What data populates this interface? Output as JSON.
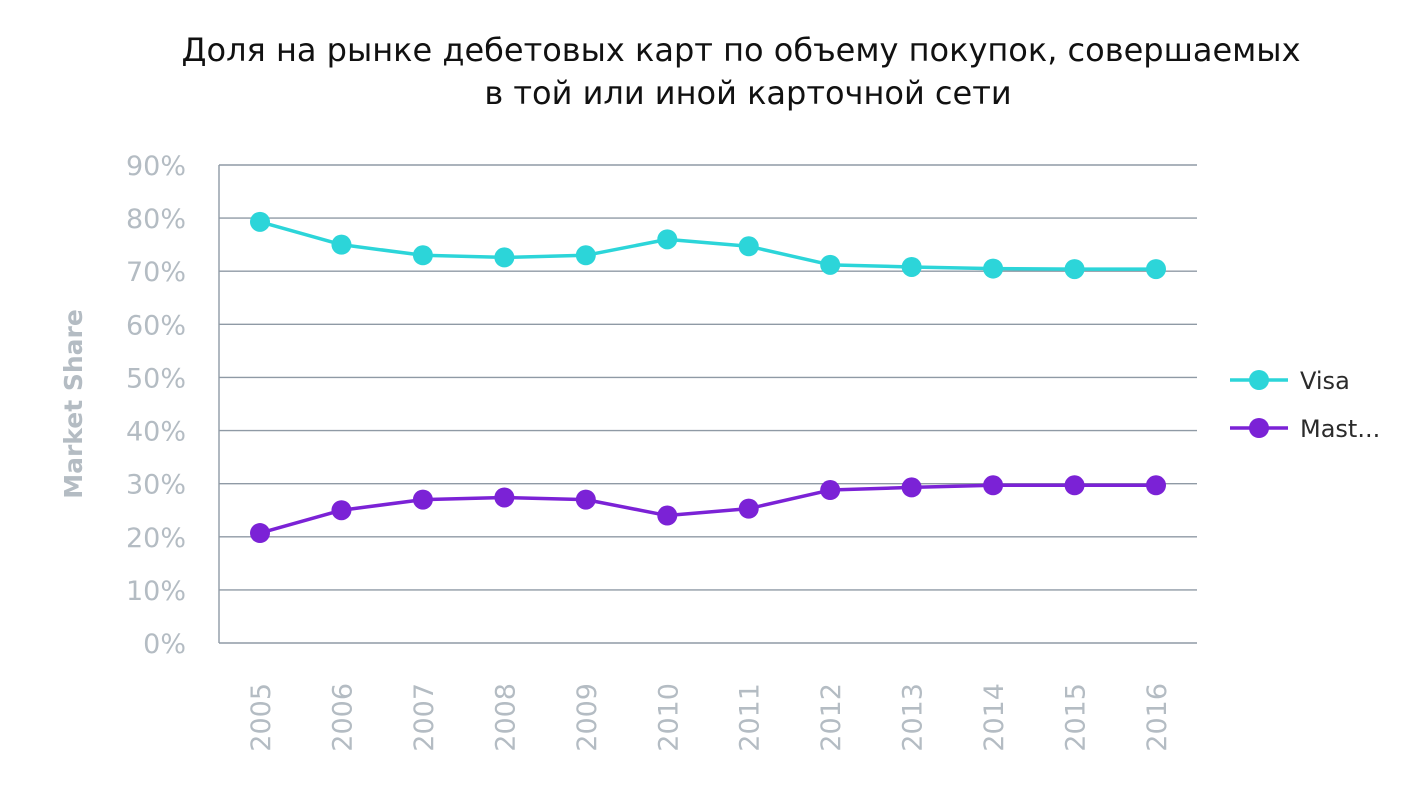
{
  "chart_data": {
    "type": "line",
    "title_lines": [
      "Доля на рынке дебетовых карт по объему покупок, совершаемых",
      "в той или иной карточной сети"
    ],
    "ylabel": "Market Share",
    "xlabel": "",
    "ylim": [
      0,
      90
    ],
    "y_ticks": [
      0,
      10,
      20,
      30,
      40,
      50,
      60,
      70,
      80,
      90
    ],
    "y_tick_labels": [
      "0%",
      "10%",
      "20%",
      "30%",
      "40%",
      "50%",
      "60%",
      "70%",
      "80%",
      "90%"
    ],
    "grid": true,
    "legend_position": "right",
    "categories": [
      "2005",
      "2006",
      "2007",
      "2008",
      "2009",
      "2010",
      "2011",
      "2012",
      "2013",
      "2014",
      "2015",
      "2016"
    ],
    "series": [
      {
        "name": "Visa",
        "color": "#2cd5d9",
        "values": [
          79.3,
          75.0,
          73.0,
          72.6,
          73.0,
          76.0,
          74.7,
          71.2,
          70.8,
          70.5,
          70.4,
          70.4
        ]
      },
      {
        "name": "Mast...",
        "color": "#7b22d6",
        "values": [
          20.7,
          25.0,
          27.0,
          27.4,
          27.0,
          24.0,
          25.3,
          28.8,
          29.3,
          29.7,
          29.7,
          29.7
        ]
      }
    ]
  },
  "colors": {
    "grid": "#8f9aa5",
    "tick_text": "#b4bcc3",
    "title_text": "#111111"
  }
}
